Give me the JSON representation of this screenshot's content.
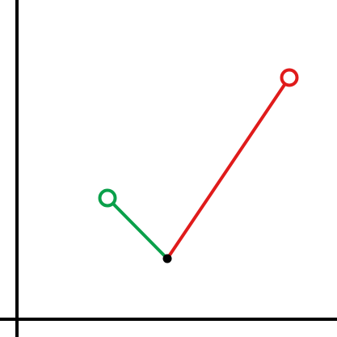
{
  "diagram": {
    "colors": {
      "background": "#ffffff",
      "axis": "#000000",
      "left_segment": "#0aa04a",
      "right_segment": "#e01b1b",
      "vertex": "#000000",
      "open_point_fill": "#ffffff"
    },
    "elements": {
      "axes": [
        "y-axis",
        "x-axis"
      ],
      "segments": [
        {
          "name": "green-segment",
          "from": "green-open-point",
          "to": "vertex-point",
          "color_key": "left_segment"
        },
        {
          "name": "red-segment",
          "from": "vertex-point",
          "to": "red-open-point",
          "color_key": "right_segment"
        }
      ],
      "points": [
        {
          "name": "green-open-point",
          "style": "open",
          "color_key": "left_segment"
        },
        {
          "name": "red-open-point",
          "style": "open",
          "color_key": "right_segment"
        },
        {
          "name": "vertex-point",
          "style": "filled",
          "color_key": "vertex"
        }
      ]
    }
  }
}
